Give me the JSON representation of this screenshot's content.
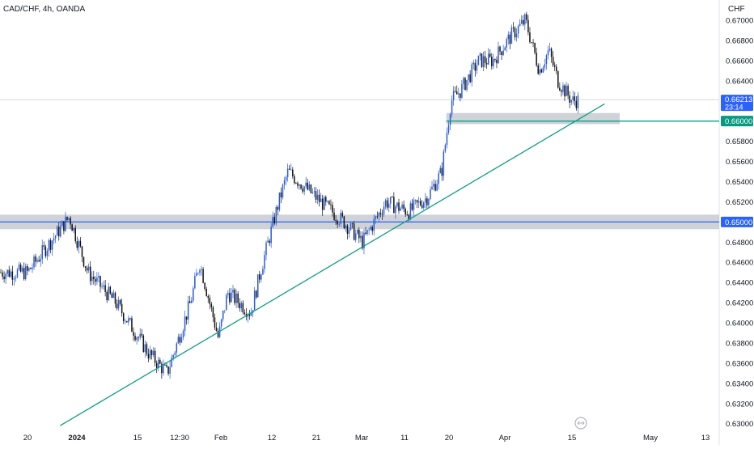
{
  "header": {
    "symbol_title": "CAD/CHF, 4h, OANDA"
  },
  "price_axis": {
    "currency": "CHF",
    "ticks": [
      "0.67000",
      "0.66800",
      "0.66600",
      "0.66400",
      "0.66200",
      "0.66000",
      "0.65800",
      "0.65600",
      "0.65400",
      "0.65200",
      "0.65000",
      "0.64800",
      "0.64600",
      "0.64400",
      "0.64200",
      "0.64000",
      "0.63800",
      "0.63600",
      "0.63400",
      "0.63200",
      "0.63000"
    ]
  },
  "time_axis": {
    "ticks": [
      "20",
      "2024",
      "15",
      "12:30",
      "Feb",
      "12",
      "21",
      "Mar",
      "11",
      "20",
      "Apr",
      "15",
      "May",
      "13"
    ]
  },
  "current_price": {
    "value": "0.66213",
    "countdown": "23:14"
  },
  "level_labels": {
    "upper": "0.66000",
    "lower": "0.65000"
  },
  "colors": {
    "up_candle": "#2a5bd7",
    "down_candle": "#111111",
    "trendline": "#0f9d84",
    "zone_fill": "#bfc3c9",
    "level_line_blue": "#2962ff",
    "price_tag_bg": "#2962ff",
    "level_tag_green": "#089981"
  },
  "chart_data": {
    "type": "line",
    "title": "CAD/CHF, 4h, OANDA",
    "xlabel": "",
    "ylabel": "",
    "ylim": [
      0.6295,
      0.6718
    ],
    "x": [
      "2023-12-20",
      "2023-12-29",
      "2024-01-02",
      "2024-01-08",
      "2024-01-15",
      "2024-01-19",
      "2024-01-24",
      "2024-01-26",
      "2024-01-30",
      "2024-02-01",
      "2024-02-06",
      "2024-02-08",
      "2024-02-12",
      "2024-02-14",
      "2024-02-21",
      "2024-02-26",
      "2024-03-01",
      "2024-03-06",
      "2024-03-11",
      "2024-03-15",
      "2024-03-18",
      "2024-03-20",
      "2024-03-22",
      "2024-03-26",
      "2024-03-29",
      "2024-04-02",
      "2024-04-05",
      "2024-04-08",
      "2024-04-10",
      "2024-04-12",
      "2024-04-15",
      "2024-04-17"
    ],
    "series": [
      {
        "values": [
          0.645,
          0.6505,
          0.645,
          0.642,
          0.637,
          0.635,
          0.642,
          0.646,
          0.6385,
          0.643,
          0.641,
          0.645,
          0.652,
          0.655,
          0.652,
          0.65,
          0.648,
          0.652,
          0.651,
          0.6525,
          0.655,
          0.662,
          0.663,
          0.666,
          0.666,
          0.6685,
          0.67,
          0.665,
          0.667,
          0.664,
          0.662,
          0.6621
        ]
      }
    ],
    "annotations": {
      "trendline": {
        "from": [
          "2023-12-27",
          0.6298
        ],
        "to": [
          "2024-04-22",
          0.6617
        ]
      },
      "support_zone_upper": {
        "level": 0.66,
        "band": [
          0.6597,
          0.6608
        ],
        "x_start": "2024-03-19"
      },
      "support_zone_lower": {
        "level": 0.65,
        "band": [
          0.6496,
          0.6504
        ]
      },
      "last_price": 0.66213
    }
  }
}
